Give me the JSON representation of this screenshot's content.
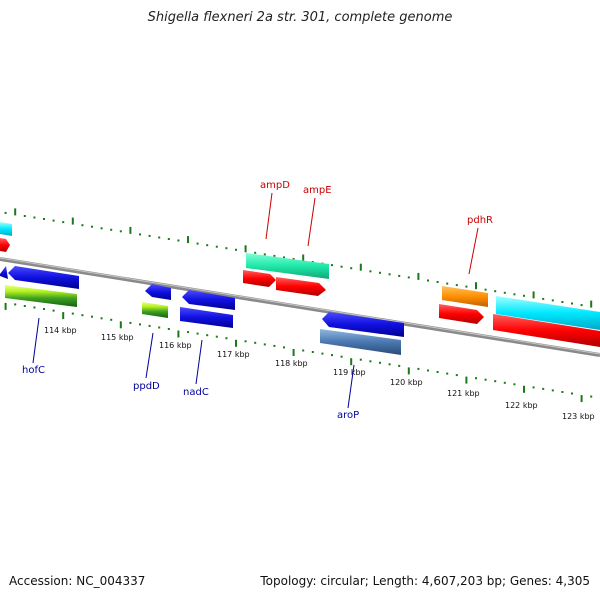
{
  "title": "Shigella flexneri 2a str. 301, complete genome",
  "footer": {
    "accession": "Accession: NC_004337",
    "summary": "Topology: circular; Length: 4,607,203 bp; Genes: 4,305"
  },
  "scale_labels": [
    "114 kbp",
    "115 kbp",
    "116 kbp",
    "117 kbp",
    "118 kbp",
    "119 kbp",
    "120 kbp",
    "121 kbp",
    "122 kbp",
    "123 kbp"
  ],
  "gene_labels": {
    "forward": [
      "ampD",
      "ampE",
      "pdhR"
    ],
    "reverse": [
      "hofC",
      "ppdD",
      "nadC",
      "aroP"
    ]
  },
  "colors": {
    "forward_label": "#cc0000",
    "reverse_label": "#00009c",
    "backbone": "#8a8a8a",
    "ticks": "#1a7a1a"
  }
}
